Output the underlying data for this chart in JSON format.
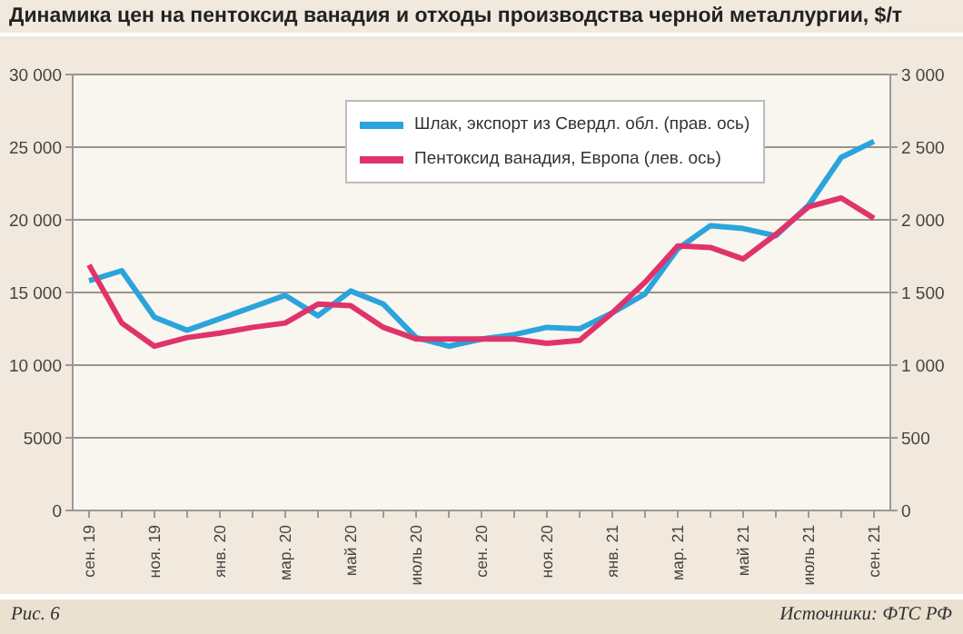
{
  "chart_data": {
    "type": "line",
    "title": "Динамика цен на пентоксид ванадия и отходы производства черной металлургии, $/т",
    "categories": [
      "сен. 19",
      null,
      "ноя. 19",
      null,
      "янв. 20",
      null,
      "мар. 20",
      null,
      "май 20",
      null,
      "июль 20",
      null,
      "сен. 20",
      null,
      "ноя. 20",
      null,
      "янв. 21",
      null,
      "мар. 21",
      null,
      "май 21",
      null,
      "июль 21",
      null,
      "сен. 21"
    ],
    "series": [
      {
        "name": "Шлак, экспорт из Свердл. обл. (прав. ось)",
        "color": "#2ba4dc",
        "axis": "y2",
        "values": [
          1580,
          1650,
          1330,
          1240,
          1320,
          1400,
          1480,
          1340,
          1510,
          1420,
          1190,
          1130,
          1180,
          1210,
          1260,
          1250,
          1360,
          1490,
          1800,
          1960,
          1940,
          1890,
          2100,
          2430,
          2540
        ]
      },
      {
        "name": "Пентоксид ванадия, Европа (лев. ось)",
        "color": "#e0336c",
        "values": [
          16900,
          12900,
          11300,
          11900,
          12200,
          12600,
          12900,
          14200,
          14100,
          12600,
          11800,
          11800,
          11800,
          11800,
          11500,
          11700,
          13600,
          15700,
          18200,
          18100,
          17300,
          19000,
          20900,
          21500,
          20100
        ]
      }
    ],
    "ylim": [
      0,
      30000
    ],
    "yticks": [
      0,
      {
        "value": 5000,
        "label": "5000"
      },
      {
        "value": 10000,
        "label": "10 000"
      },
      {
        "value": 15000,
        "label": "15 000"
      },
      {
        "value": 20000,
        "label": "20 000"
      },
      {
        "value": 25000,
        "label": "25 000"
      },
      {
        "value": 30000,
        "label": "30 000"
      }
    ],
    "y2lim": [
      0,
      3000
    ],
    "y2ticks": [
      0,
      500,
      {
        "value": 1000,
        "label": "1 000"
      },
      {
        "value": 1500,
        "label": "1 500"
      },
      {
        "value": 2000,
        "label": "2 000"
      },
      {
        "value": 2500,
        "label": "2 500"
      },
      {
        "value": 3000,
        "label": "3 000"
      }
    ],
    "grid": "y",
    "legend": "top right",
    "marker": "none",
    "line_style": "solid",
    "annotations": [
      "Рис. 6",
      "Источники: ФТС РФ"
    ]
  }
}
